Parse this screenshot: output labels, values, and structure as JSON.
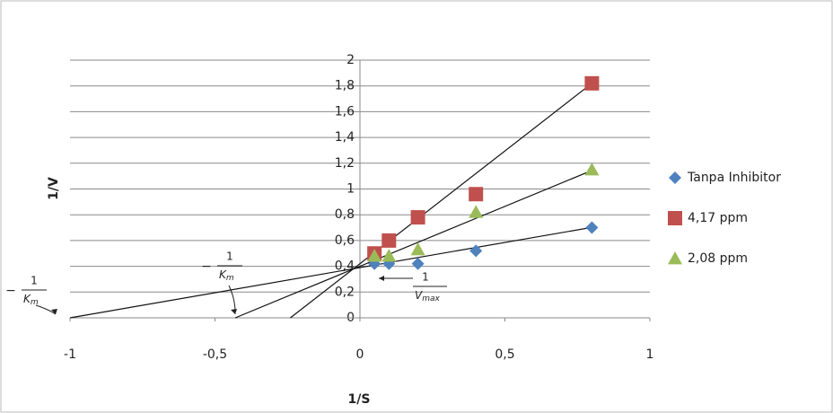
{
  "chart_data": {
    "type": "scatter",
    "x_label": "1/S",
    "y_label": "1/V",
    "xlim": [
      -1,
      1
    ],
    "xticks": [
      -1,
      {
        "value": -0.5,
        "label": "-0,5"
      },
      0,
      {
        "value": 0.5,
        "label": "0,5"
      },
      1
    ],
    "ylim": [
      0,
      2
    ],
    "yticks": [
      0,
      {
        "value": 0.2,
        "label": "0,2"
      },
      {
        "value": 0.4,
        "label": "0,4"
      },
      {
        "value": 0.6,
        "label": "0,6"
      },
      {
        "value": 0.8,
        "label": "0,8"
      },
      1,
      {
        "value": 1.2,
        "label": "1,2"
      },
      {
        "value": 1.4,
        "label": "1,4"
      },
      {
        "value": 1.6,
        "label": "1,6"
      },
      {
        "value": 1.8,
        "label": "1,8"
      },
      2
    ],
    "grid": true,
    "legend": "right",
    "series": [
      {
        "name": "Tanpa Inhibitor",
        "color": "#4f81bd",
        "marker": "diamond",
        "x": [
          0.05,
          0.1,
          0.2,
          0.4,
          0.8
        ],
        "values": [
          0.42,
          0.42,
          0.42,
          0.52,
          0.7
        ],
        "trend": {
          "slope": 0.39,
          "intercept": 0.39
        }
      },
      {
        "name": "4,17 ppm",
        "color": "#c0504d",
        "marker": "square",
        "x": [
          0.05,
          0.1,
          0.2,
          0.4,
          0.8
        ],
        "values": [
          0.5,
          0.6,
          0.78,
          0.96,
          1.82
        ],
        "trend": {
          "slope": 1.75,
          "intercept": 0.42
        }
      },
      {
        "name": "2,08 ppm",
        "color": "#9bbb59",
        "marker": "triangle",
        "x": [
          0.05,
          0.1,
          0.2,
          0.4,
          0.8
        ],
        "values": [
          0.48,
          0.48,
          0.53,
          0.82,
          1.15
        ],
        "trend": {
          "slope": 0.93,
          "intercept": 0.4
        }
      }
    ],
    "annotations": [
      {
        "minus": "−",
        "numerator": "1",
        "symbol": "K",
        "subscript": "m"
      },
      {
        "minus": "−",
        "numerator": "1",
        "symbol": "K",
        "subscript": "m"
      },
      {
        "numerator": "1",
        "symbol": "V",
        "subscript": "max"
      }
    ]
  }
}
